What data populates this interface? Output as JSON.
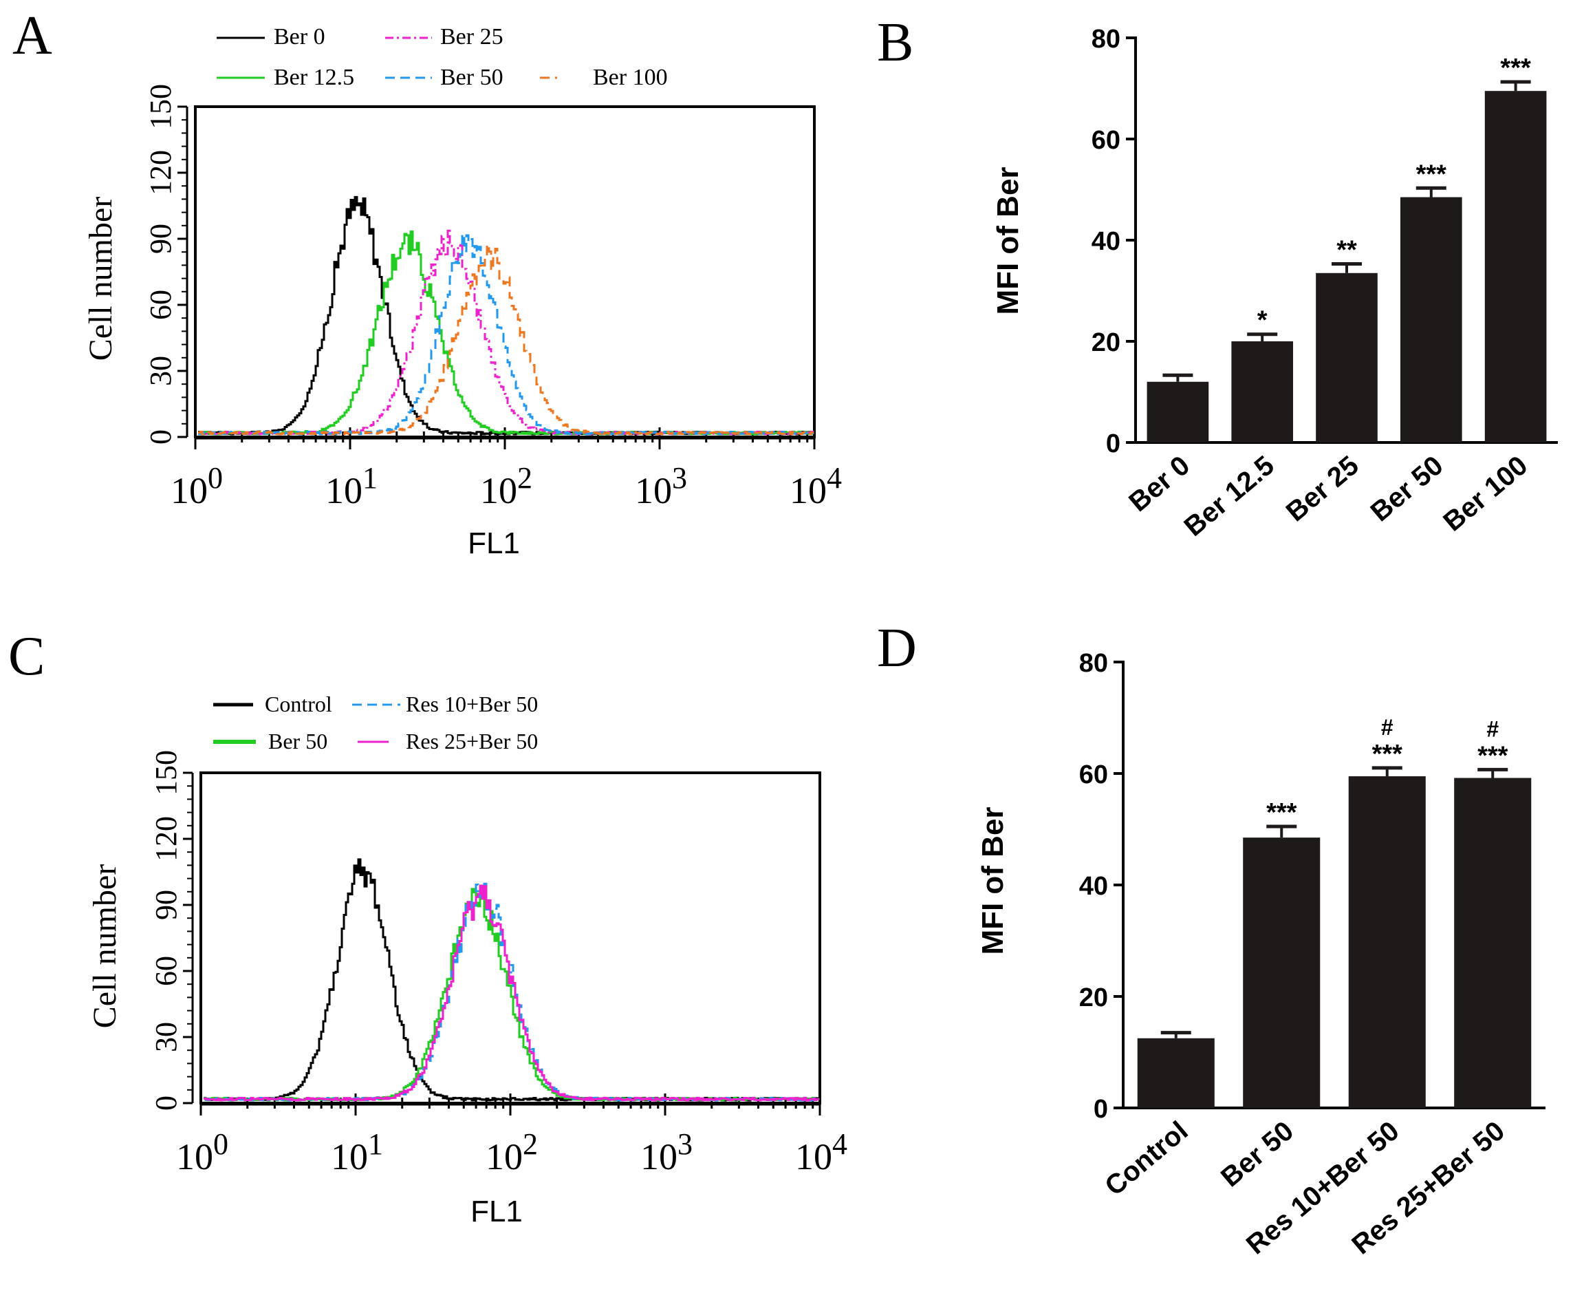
{
  "chart_data": [
    {
      "panel": "A",
      "type": "line",
      "subtype": "flow-cytometry-histogram",
      "xlabel": "FL1",
      "ylabel": "Cell number",
      "xscale": "log",
      "xlim": [
        1,
        10000
      ],
      "ylim": [
        0,
        150
      ],
      "yticks": [
        "0",
        "30",
        "60",
        "90",
        "120",
        "150"
      ],
      "xticks": [
        {
          "base": "10",
          "exp": "0"
        },
        {
          "base": "10",
          "exp": "1"
        },
        {
          "base": "10",
          "exp": "2"
        },
        {
          "base": "10",
          "exp": "3"
        },
        {
          "base": "10",
          "exp": "4"
        }
      ],
      "legend_position": "top",
      "series": [
        {
          "name": "Ber 0",
          "color": "#000000",
          "dash": "solid",
          "peak": 103,
          "center": 11,
          "width": 0.17
        },
        {
          "name": "Ber 12.5",
          "color": "#22cc22",
          "dash": "solid",
          "peak": 86,
          "center": 23,
          "width": 0.19
        },
        {
          "name": "Ber 25",
          "color": "#ee22cc",
          "dash": "dashdot",
          "peak": 86,
          "center": 43,
          "width": 0.2
        },
        {
          "name": "Ber 50",
          "color": "#2299ee",
          "dash": "dashed",
          "peak": 88,
          "center": 58,
          "width": 0.18
        },
        {
          "name": "Ber 100",
          "color": "#ee7722",
          "dash": "dashed",
          "peak": 80,
          "center": 78,
          "width": 0.2
        }
      ]
    },
    {
      "panel": "B",
      "type": "bar",
      "ylabel": "MFI of Ber",
      "ylim": [
        0,
        80
      ],
      "yticks": [
        "0",
        "20",
        "40",
        "60",
        "80"
      ],
      "categories": [
        "Ber 0",
        "Ber 12.5",
        "Ber 25",
        "Ber 50",
        "Ber 100"
      ],
      "values": [
        12,
        20,
        33.5,
        48.5,
        69.5
      ],
      "errors": [
        1.3,
        1.4,
        1.8,
        1.8,
        1.8
      ],
      "annotations": [
        "",
        "*",
        "**",
        "***",
        "***"
      ],
      "color": "#1f1a1a"
    },
    {
      "panel": "C",
      "type": "line",
      "subtype": "flow-cytometry-histogram",
      "xlabel": "FL1",
      "ylabel": "Cell number",
      "xscale": "log",
      "xlim": [
        1,
        10000
      ],
      "ylim": [
        0,
        150
      ],
      "yticks": [
        "0",
        "30",
        "60",
        "90",
        "120",
        "150"
      ],
      "xticks": [
        {
          "base": "10",
          "exp": "0"
        },
        {
          "base": "10",
          "exp": "1"
        },
        {
          "base": "10",
          "exp": "2"
        },
        {
          "base": "10",
          "exp": "3"
        },
        {
          "base": "10",
          "exp": "4"
        }
      ],
      "legend_position": "top",
      "series": [
        {
          "name": "Control",
          "color": "#000000",
          "dash": "solid",
          "peak": 103,
          "center": 11,
          "width": 0.17
        },
        {
          "name": "Ber 50",
          "color": "#22cc22",
          "dash": "solid",
          "peak": 90,
          "center": 60,
          "width": 0.19
        },
        {
          "name": "Res 10+Ber 50",
          "color": "#2299ee",
          "dash": "dashed",
          "peak": 94,
          "center": 65,
          "width": 0.19
        },
        {
          "name": "Res 25+Ber 50",
          "color": "#ee22cc",
          "dash": "solid",
          "peak": 92,
          "center": 64,
          "width": 0.19
        }
      ]
    },
    {
      "panel": "D",
      "type": "bar",
      "ylabel": "MFI of Ber",
      "ylim": [
        0,
        80
      ],
      "yticks": [
        "0",
        "20",
        "40",
        "60",
        "80"
      ],
      "categories": [
        "Control",
        "Ber 50",
        "Res 10+Ber 50",
        "Res 25+Ber 50"
      ],
      "values": [
        12.5,
        48.5,
        59.5,
        59.2
      ],
      "errors": [
        1.0,
        2.0,
        1.5,
        1.5
      ],
      "annotations": [
        "",
        "***",
        "***",
        "***"
      ],
      "annotations2": [
        "",
        "",
        "#",
        "#"
      ],
      "color": "#1f1a1a"
    }
  ]
}
